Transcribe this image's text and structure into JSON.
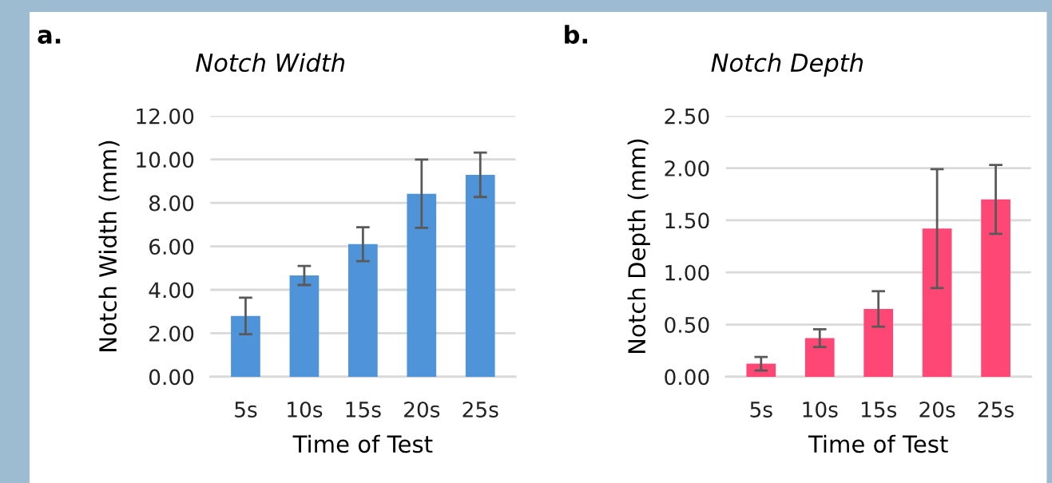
{
  "chart_data": [
    {
      "type": "bar",
      "title": "Notch Width",
      "xlabel": "Time of Test",
      "ylabel": "Notch Width (mm)",
      "annotations": [
        "a."
      ],
      "categories": [
        "5s",
        "10s",
        "15s",
        "20s",
        "25s"
      ],
      "values": [
        2.8,
        4.66,
        6.1,
        8.42,
        9.29
      ],
      "errors": [
        0.84,
        0.44,
        0.78,
        1.57,
        1.02
      ],
      "color": "#4f94d8",
      "ylim": [
        0,
        12
      ],
      "yticks": [
        {
          "value": 0,
          "label": "0.00"
        },
        {
          "value": 2,
          "label": "2.00"
        },
        {
          "value": 4,
          "label": "4.00"
        },
        {
          "value": 6,
          "label": "6.00"
        },
        {
          "value": 8,
          "label": "8.00"
        },
        {
          "value": 10,
          "label": "10.00"
        },
        {
          "value": 12,
          "label": "12.00"
        }
      ],
      "grid": "y"
    },
    {
      "type": "bar",
      "title": "Notch Depth",
      "xlabel": "Time of Test",
      "ylabel": "Notch Depth (mm)",
      "annotations": [
        "b."
      ],
      "categories": [
        "5s",
        "10s",
        "15s",
        "20s",
        "25s"
      ],
      "values": [
        0.125,
        0.37,
        0.65,
        1.42,
        1.7
      ],
      "errors": [
        0.065,
        0.085,
        0.17,
        0.57,
        0.33
      ],
      "color": "#ff4775",
      "ylim": [
        0,
        2.5
      ],
      "yticks": [
        {
          "value": 0,
          "label": "0.00"
        },
        {
          "value": 0.5,
          "label": "0.50"
        },
        {
          "value": 1,
          "label": "1.00"
        },
        {
          "value": 1.5,
          "label": "1.50"
        },
        {
          "value": 2,
          "label": "2.00"
        },
        {
          "value": 2.5,
          "label": "2.50"
        }
      ],
      "grid": "y"
    }
  ]
}
